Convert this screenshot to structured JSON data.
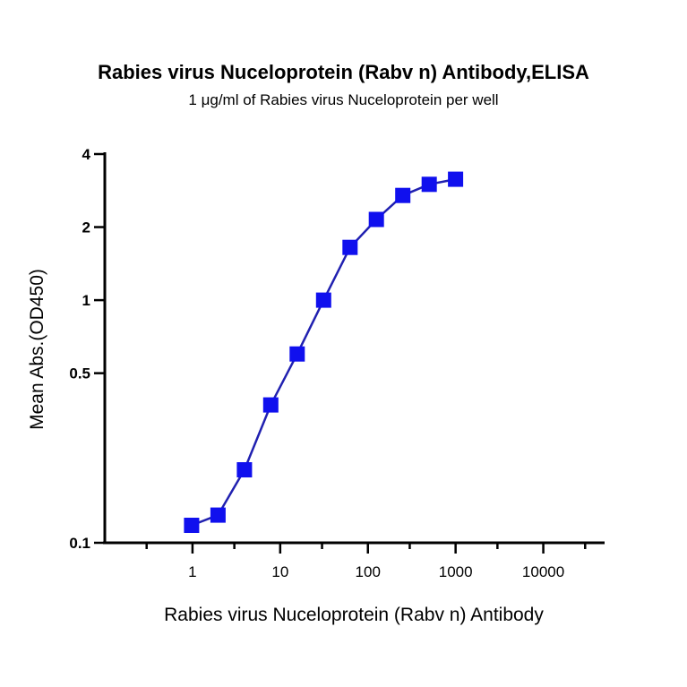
{
  "chart_data": {
    "type": "line",
    "title": "Rabies virus Nuceloprotein (Rabv n) Antibody,ELISA",
    "subtitle": "1 μg/ml of Rabies virus Nuceloprotein per well",
    "xlabel": "Rabies virus Nuceloprotein (Rabv n) Antibody",
    "ylabel": "Mean Abs.(OD450)",
    "xscale": "log",
    "yscale": "log",
    "xlim": [
      0.1,
      50000
    ],
    "ylim": [
      0.1,
      4
    ],
    "xticks": [
      1,
      10,
      100,
      1000,
      10000
    ],
    "xtick_labels": [
      "1",
      "10",
      "100",
      "1000",
      "10000"
    ],
    "yticks": [
      0.1,
      0.5,
      1,
      2,
      4
    ],
    "ytick_labels": [
      "0.1",
      "0.5",
      "1",
      "2",
      "4"
    ],
    "grid": false,
    "series": [
      {
        "marker": "square",
        "color": "#1010ee",
        "line_color": "#2020b0",
        "x": [
          0.977,
          1.953,
          3.906,
          7.8125,
          15.625,
          31.25,
          62.5,
          125,
          250,
          500,
          1000
        ],
        "y": [
          0.118,
          0.13,
          0.2,
          0.37,
          0.6,
          1.0,
          1.65,
          2.15,
          2.7,
          3.0,
          3.15
        ]
      }
    ]
  }
}
